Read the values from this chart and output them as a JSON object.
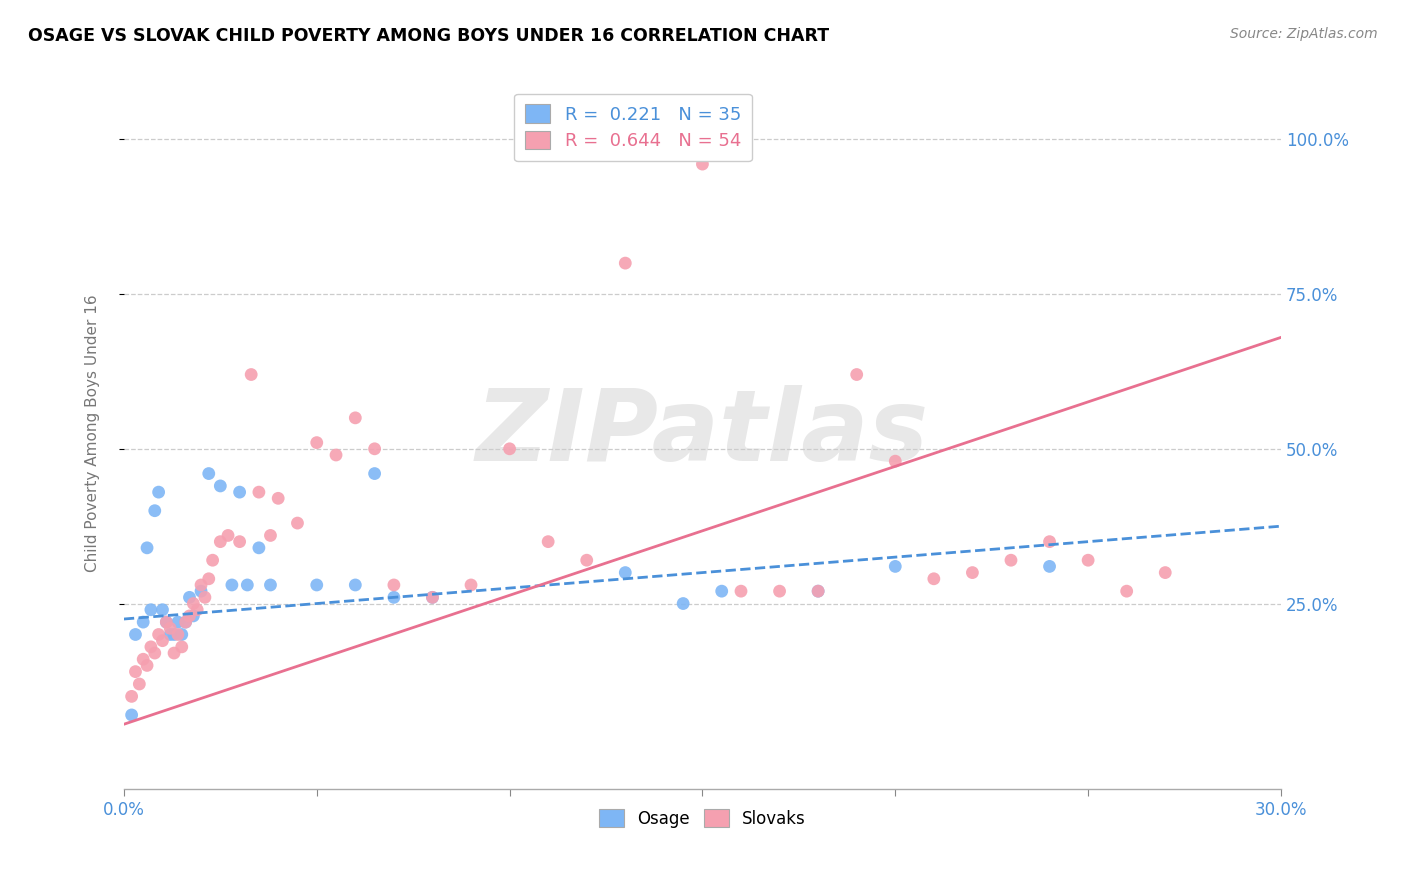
{
  "title": "OSAGE VS SLOVAK CHILD POVERTY AMONG BOYS UNDER 16 CORRELATION CHART",
  "source": "Source: ZipAtlas.com",
  "ylabel": "Child Poverty Among Boys Under 16",
  "xlim": [
    0.0,
    0.3
  ],
  "ylim": [
    -0.05,
    1.1
  ],
  "xticks": [
    0.0,
    0.05,
    0.1,
    0.15,
    0.2,
    0.25,
    0.3
  ],
  "xtick_labels": [
    "0.0%",
    "",
    "",
    "",
    "",
    "",
    "30.0%"
  ],
  "yticks": [
    0.25,
    0.5,
    0.75,
    1.0
  ],
  "ytick_labels": [
    "25.0%",
    "50.0%",
    "75.0%",
    "100.0%"
  ],
  "osage_color": "#7eb6f5",
  "slovak_color": "#f5a0b0",
  "osage_line_color": "#4a90d9",
  "slovak_line_color": "#e87090",
  "legend_R_osage": "0.221",
  "legend_N_osage": "35",
  "legend_R_slovak": "0.644",
  "legend_N_slovak": "54",
  "watermark": "ZIPatlas",
  "osage_x": [
    0.002,
    0.003,
    0.005,
    0.006,
    0.007,
    0.008,
    0.009,
    0.01,
    0.011,
    0.012,
    0.013,
    0.014,
    0.015,
    0.016,
    0.017,
    0.018,
    0.02,
    0.022,
    0.025,
    0.028,
    0.03,
    0.032,
    0.035,
    0.038,
    0.05,
    0.06,
    0.065,
    0.07,
    0.08,
    0.13,
    0.155,
    0.18,
    0.2,
    0.24,
    0.145
  ],
  "osage_y": [
    0.07,
    0.2,
    0.22,
    0.34,
    0.24,
    0.4,
    0.43,
    0.24,
    0.22,
    0.2,
    0.2,
    0.22,
    0.2,
    0.22,
    0.26,
    0.23,
    0.27,
    0.46,
    0.44,
    0.28,
    0.43,
    0.28,
    0.34,
    0.28,
    0.28,
    0.28,
    0.46,
    0.26,
    0.26,
    0.3,
    0.27,
    0.27,
    0.31,
    0.31,
    0.25
  ],
  "slovak_x": [
    0.002,
    0.003,
    0.004,
    0.005,
    0.006,
    0.007,
    0.008,
    0.009,
    0.01,
    0.011,
    0.012,
    0.013,
    0.014,
    0.015,
    0.016,
    0.017,
    0.018,
    0.019,
    0.02,
    0.021,
    0.022,
    0.023,
    0.025,
    0.027,
    0.03,
    0.033,
    0.035,
    0.038,
    0.04,
    0.045,
    0.05,
    0.055,
    0.06,
    0.065,
    0.07,
    0.08,
    0.09,
    0.1,
    0.11,
    0.12,
    0.13,
    0.15,
    0.16,
    0.17,
    0.18,
    0.19,
    0.2,
    0.21,
    0.22,
    0.23,
    0.24,
    0.25,
    0.26,
    0.27
  ],
  "slovak_y": [
    0.1,
    0.14,
    0.12,
    0.16,
    0.15,
    0.18,
    0.17,
    0.2,
    0.19,
    0.22,
    0.21,
    0.17,
    0.2,
    0.18,
    0.22,
    0.23,
    0.25,
    0.24,
    0.28,
    0.26,
    0.29,
    0.32,
    0.35,
    0.36,
    0.35,
    0.62,
    0.43,
    0.36,
    0.42,
    0.38,
    0.51,
    0.49,
    0.55,
    0.5,
    0.28,
    0.26,
    0.28,
    0.5,
    0.35,
    0.32,
    0.8,
    0.96,
    0.27,
    0.27,
    0.27,
    0.62,
    0.48,
    0.29,
    0.3,
    0.32,
    0.35,
    0.32,
    0.27,
    0.3
  ],
  "osage_line_x0": 0.0,
  "osage_line_x1": 0.3,
  "osage_line_y0": 0.225,
  "osage_line_y1": 0.375,
  "slovak_line_x0": 0.0,
  "slovak_line_x1": 0.3,
  "slovak_line_y0": 0.055,
  "slovak_line_y1": 0.68
}
